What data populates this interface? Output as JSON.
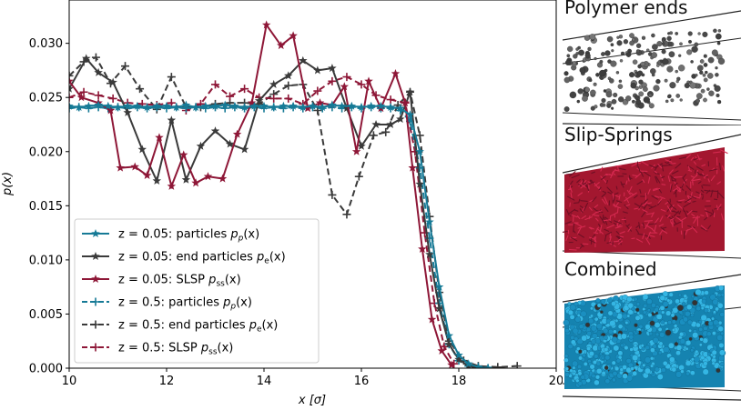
{
  "chart_data": {
    "type": "line",
    "xlabel": "x [σ]",
    "ylabel": "p(x)",
    "xlim": [
      10,
      20
    ],
    "ylim": [
      0.0,
      0.034
    ],
    "x_ticks": [
      "10",
      "12",
      "14",
      "16",
      "18",
      "20"
    ],
    "y_ticks": [
      "0.000",
      "0.005",
      "0.010",
      "0.015",
      "0.020",
      "0.025",
      "0.030"
    ],
    "x_tick_values": [
      10,
      12,
      14,
      16,
      18,
      20
    ],
    "y_tick_values": [
      0.0,
      0.005,
      0.01,
      0.015,
      0.02,
      0.025,
      0.03
    ],
    "grid": false,
    "legend_position": "lower-left",
    "series": [
      {
        "name": "z = 0.05: particles p_p(x)",
        "color": "#167a96",
        "linestyle": "solid",
        "marker": "star",
        "x": [
          10.0,
          10.2,
          10.4,
          10.6,
          10.8,
          11.0,
          11.2,
          11.4,
          11.6,
          11.8,
          12.0,
          12.2,
          12.4,
          12.6,
          12.8,
          13.0,
          13.2,
          13.4,
          13.6,
          13.8,
          14.0,
          14.2,
          14.4,
          14.6,
          14.8,
          15.0,
          15.2,
          15.4,
          15.6,
          15.8,
          16.0,
          16.2,
          16.4,
          16.6,
          16.8,
          17.0,
          17.2,
          17.4,
          17.6,
          17.8,
          18.0,
          18.2,
          18.4,
          18.6
        ],
        "y": [
          0.0242,
          0.0241,
          0.0242,
          0.0243,
          0.0242,
          0.0241,
          0.0242,
          0.0242,
          0.0241,
          0.0242,
          0.0242,
          0.0241,
          0.0243,
          0.0241,
          0.0242,
          0.0242,
          0.0243,
          0.0242,
          0.0241,
          0.0242,
          0.0242,
          0.0241,
          0.0242,
          0.0242,
          0.0241,
          0.0242,
          0.0241,
          0.0243,
          0.0242,
          0.0242,
          0.0241,
          0.0242,
          0.0242,
          0.0241,
          0.024,
          0.0234,
          0.02,
          0.0135,
          0.0075,
          0.003,
          0.0012,
          0.0004,
          0.0001,
          0.0
        ]
      },
      {
        "name": "z = 0.05: end particles p_e(x)",
        "color": "#3a3a3a",
        "linestyle": "solid",
        "marker": "star",
        "x": [
          10.0,
          10.35,
          10.6,
          10.9,
          11.2,
          11.5,
          11.8,
          12.1,
          12.4,
          12.7,
          13.0,
          13.3,
          13.6,
          13.9,
          14.2,
          14.5,
          14.8,
          15.1,
          15.4,
          15.7,
          16.0,
          16.3,
          16.6,
          16.8,
          17.0,
          17.2,
          17.4,
          17.6,
          17.8,
          18.0,
          18.2,
          18.4
        ],
        "y": [
          0.0258,
          0.0286,
          0.0273,
          0.0264,
          0.0236,
          0.0202,
          0.0173,
          0.0229,
          0.0174,
          0.0205,
          0.0219,
          0.0207,
          0.0202,
          0.0247,
          0.0262,
          0.027,
          0.0284,
          0.0275,
          0.0277,
          0.024,
          0.0205,
          0.0225,
          0.0225,
          0.023,
          0.0255,
          0.017,
          0.0105,
          0.0055,
          0.0022,
          0.0008,
          0.0002,
          0.0
        ]
      },
      {
        "name": "z = 0.05: SLSP p_ss(x)",
        "color": "#8e1737",
        "linestyle": "solid",
        "marker": "star",
        "x": [
          10.0,
          10.25,
          10.6,
          10.85,
          11.05,
          11.35,
          11.6,
          11.85,
          12.1,
          12.35,
          12.6,
          12.85,
          13.15,
          13.45,
          13.75,
          14.05,
          14.35,
          14.6,
          14.9,
          15.15,
          15.4,
          15.65,
          15.9,
          16.15,
          16.4,
          16.7,
          16.9,
          17.05,
          17.25,
          17.45,
          17.65,
          17.85
        ],
        "y": [
          0.0265,
          0.025,
          0.0245,
          0.0238,
          0.0185,
          0.0186,
          0.0178,
          0.0213,
          0.0168,
          0.0197,
          0.0171,
          0.0177,
          0.0175,
          0.0216,
          0.0245,
          0.0317,
          0.0298,
          0.0307,
          0.024,
          0.0245,
          0.0243,
          0.026,
          0.02,
          0.0265,
          0.024,
          0.0272,
          0.0245,
          0.0185,
          0.011,
          0.0045,
          0.0016,
          0.0003
        ]
      },
      {
        "name": "z = 0.5: particles p_p(x)",
        "color": "#167a96",
        "linestyle": "dashed",
        "marker": "plus",
        "x": [
          10.0,
          10.2,
          10.4,
          10.6,
          10.8,
          11.0,
          11.2,
          11.4,
          11.6,
          11.8,
          12.0,
          12.2,
          12.4,
          12.6,
          12.8,
          13.0,
          13.2,
          13.4,
          13.6,
          13.8,
          14.0,
          14.2,
          14.4,
          14.6,
          14.8,
          15.0,
          15.2,
          15.4,
          15.6,
          15.8,
          16.0,
          16.2,
          16.4,
          16.6,
          16.8,
          17.0,
          17.2,
          17.4,
          17.6,
          17.8,
          18.0,
          18.2,
          18.4,
          18.6
        ],
        "y": [
          0.024,
          0.0241,
          0.024,
          0.0241,
          0.024,
          0.0241,
          0.024,
          0.0241,
          0.024,
          0.0241,
          0.024,
          0.0241,
          0.024,
          0.0241,
          0.024,
          0.0241,
          0.024,
          0.0241,
          0.024,
          0.0241,
          0.024,
          0.0241,
          0.024,
          0.0241,
          0.024,
          0.0241,
          0.024,
          0.0241,
          0.024,
          0.0241,
          0.024,
          0.0241,
          0.024,
          0.024,
          0.0238,
          0.0228,
          0.0185,
          0.012,
          0.006,
          0.0022,
          0.0007,
          0.0002,
          0.0001,
          0.0
        ]
      },
      {
        "name": "z = 0.5: end particles p_e(x)",
        "color": "#3a3a3a",
        "linestyle": "dashed",
        "marker": "plus",
        "x": [
          10.0,
          10.3,
          10.55,
          10.85,
          11.15,
          11.45,
          11.8,
          12.1,
          12.4,
          12.7,
          13.0,
          13.3,
          13.6,
          13.9,
          14.2,
          14.5,
          14.8,
          15.1,
          15.4,
          15.7,
          15.95,
          16.25,
          16.5,
          16.75,
          17.0,
          17.2,
          17.4,
          17.6,
          17.8,
          18.1,
          18.4,
          18.8,
          19.2
        ],
        "y": [
          0.027,
          0.0283,
          0.0287,
          0.0263,
          0.0279,
          0.0258,
          0.0239,
          0.0269,
          0.0241,
          0.0241,
          0.0244,
          0.0245,
          0.0245,
          0.0244,
          0.0253,
          0.0261,
          0.0262,
          0.0238,
          0.016,
          0.0142,
          0.0177,
          0.0215,
          0.0218,
          0.0243,
          0.0255,
          0.0215,
          0.014,
          0.007,
          0.0025,
          0.0007,
          0.0002,
          0.0001,
          0.0002
        ]
      },
      {
        "name": "z = 0.5: SLSP p_ss(x)",
        "color": "#8e1737",
        "linestyle": "dashed",
        "marker": "plus",
        "x": [
          10.0,
          10.3,
          10.6,
          10.9,
          11.2,
          11.5,
          11.8,
          12.1,
          12.4,
          12.7,
          13.0,
          13.3,
          13.6,
          13.9,
          14.2,
          14.5,
          14.8,
          15.1,
          15.4,
          15.7,
          16.0,
          16.3,
          16.6,
          16.9,
          17.1,
          17.3,
          17.5,
          17.7,
          17.9
        ],
        "y": [
          0.025,
          0.0255,
          0.0252,
          0.0249,
          0.0245,
          0.0244,
          0.0243,
          0.0245,
          0.0238,
          0.0244,
          0.0262,
          0.0251,
          0.0258,
          0.025,
          0.0249,
          0.0249,
          0.0244,
          0.0256,
          0.0265,
          0.0269,
          0.0262,
          0.0252,
          0.0248,
          0.0245,
          0.02,
          0.0125,
          0.006,
          0.002,
          0.0004
        ]
      }
    ]
  },
  "legend": {
    "items": [
      {
        "prefix": "z = 0.05: particles ",
        "sym": "p",
        "sub": "p",
        "tail": "(x)"
      },
      {
        "prefix": "z = 0.05: end particles ",
        "sym": "p",
        "sub": "e",
        "tail": "(x)"
      },
      {
        "prefix": "z = 0.05: SLSP ",
        "sym": "p",
        "sub": "ss",
        "tail": "(x)"
      },
      {
        "prefix": "z = 0.5: particles ",
        "sym": "p",
        "sub": "p",
        "tail": "(x)"
      },
      {
        "prefix": "z = 0.5: end particles ",
        "sym": "p",
        "sub": "e",
        "tail": "(x)"
      },
      {
        "prefix": "z = 0.5: SLSP ",
        "sym": "p",
        "sub": "ss",
        "tail": "(x)"
      }
    ]
  },
  "panels": [
    {
      "title": "Polymer ends",
      "color": "#555555"
    },
    {
      "title": "Slip-Springs",
      "color": "#b01a3a"
    },
    {
      "title": "Combined",
      "color": "#1ea0d0"
    }
  ]
}
